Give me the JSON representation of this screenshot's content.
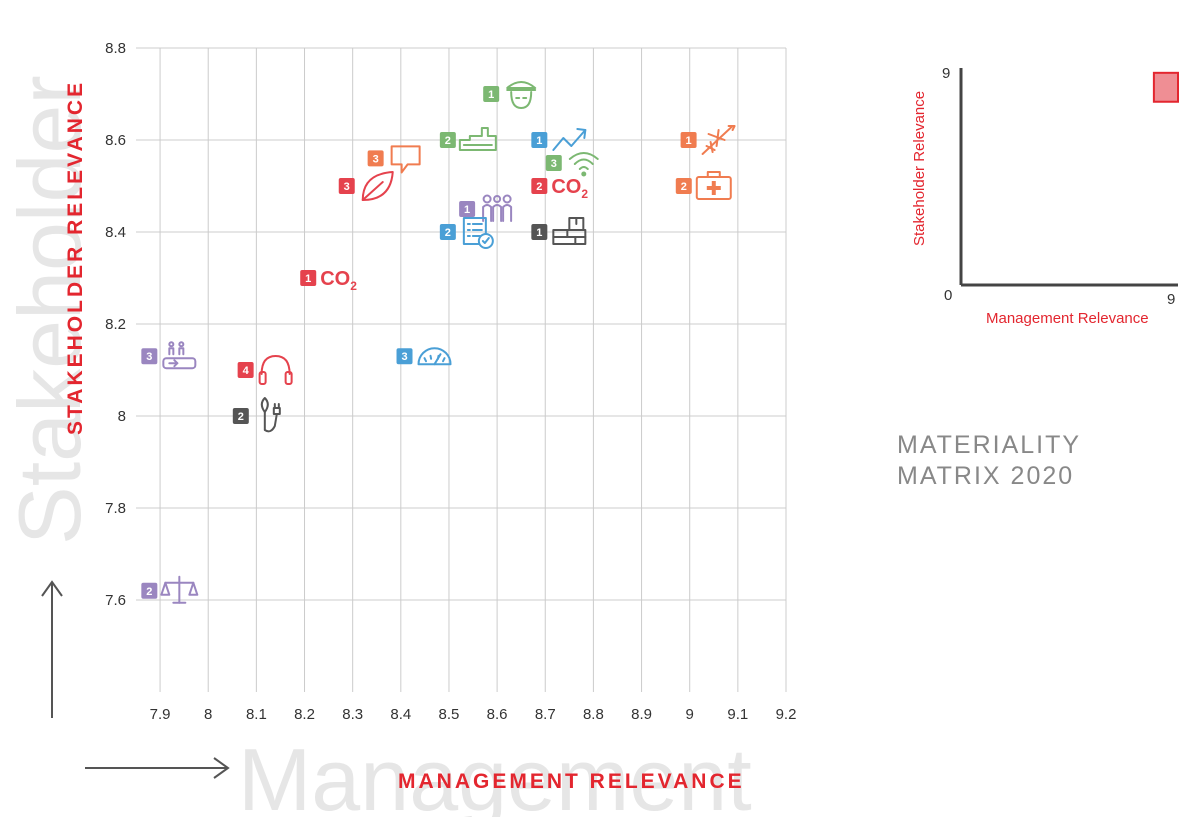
{
  "chart_data": {
    "type": "scatter",
    "title": "MATERIALITY MATRIX 2020",
    "xlabel": "MANAGEMENT RELEVANCE",
    "ylabel": "STAKEHOLDER RELEVANCE",
    "background_xlabel": "Management",
    "background_ylabel": "Stakeholder",
    "xlim": [
      7.85,
      9.2
    ],
    "ylim": [
      7.4,
      8.8
    ],
    "x_ticks": [
      "7.9",
      "8",
      "8.1",
      "8.2",
      "8.3",
      "8.4",
      "8.5",
      "8.6",
      "8.7",
      "8.8",
      "8.9",
      "9",
      "9.1",
      "9.2"
    ],
    "y_ticks": [
      "8.8",
      "8.6",
      "8.4",
      "8.2",
      "8",
      "7.8",
      "7.6"
    ],
    "points": [
      {
        "x": 8.65,
        "y": 8.7,
        "badge": "1",
        "icon": "pilot",
        "color": "#7cb872"
      },
      {
        "x": 8.56,
        "y": 8.6,
        "badge": "2",
        "icon": "factory",
        "color": "#7cb872"
      },
      {
        "x": 8.75,
        "y": 8.6,
        "badge": "1",
        "icon": "growth",
        "color": "#4a9fd6"
      },
      {
        "x": 8.78,
        "y": 8.55,
        "badge": "3",
        "icon": "wifi",
        "color": "#7cb872"
      },
      {
        "x": 9.06,
        "y": 8.6,
        "badge": "1",
        "icon": "airplane",
        "color": "#f07c50"
      },
      {
        "x": 8.41,
        "y": 8.56,
        "badge": "3",
        "icon": "chat",
        "color": "#f07c50"
      },
      {
        "x": 8.35,
        "y": 8.5,
        "badge": "3",
        "icon": "leaf",
        "color": "#e5424d"
      },
      {
        "x": 8.75,
        "y": 8.5,
        "badge": "2",
        "icon": "co2",
        "color": "#e5424d",
        "label": "CO",
        "label_sub": "2"
      },
      {
        "x": 9.05,
        "y": 8.5,
        "badge": "2",
        "icon": "medkit",
        "color": "#f07c50"
      },
      {
        "x": 8.6,
        "y": 8.45,
        "badge": "1",
        "icon": "people",
        "color": "#9a86c0"
      },
      {
        "x": 8.56,
        "y": 8.4,
        "badge": "2",
        "icon": "checklist",
        "color": "#4a9fd6"
      },
      {
        "x": 8.75,
        "y": 8.4,
        "badge": "1",
        "icon": "bricks",
        "color": "#555555"
      },
      {
        "x": 8.27,
        "y": 8.3,
        "badge": "1",
        "icon": "co2",
        "color": "#e5424d",
        "label": "CO",
        "label_sub": "2"
      },
      {
        "x": 7.94,
        "y": 8.13,
        "badge": "3",
        "icon": "elevator",
        "color": "#9a86c0"
      },
      {
        "x": 8.47,
        "y": 8.13,
        "badge": "3",
        "icon": "speedometer",
        "color": "#4a9fd6"
      },
      {
        "x": 8.14,
        "y": 8.1,
        "badge": "4",
        "icon": "headphones",
        "color": "#e5424d"
      },
      {
        "x": 8.13,
        "y": 8.0,
        "badge": "2",
        "icon": "plant-plug",
        "color": "#555555"
      },
      {
        "x": 7.94,
        "y": 7.62,
        "badge": "2",
        "icon": "scales",
        "color": "#9a86c0"
      }
    ],
    "legend": {
      "xlabel": "Management Relevance",
      "ylabel": "Stakeholder Relevance",
      "x_min": "0",
      "x_max": "9",
      "y_min": "0",
      "y_max": "9",
      "highlight_x": [
        8,
        9
      ],
      "highlight_y": [
        7.6,
        8.8
      ],
      "highlight_color": "#e5424d"
    }
  },
  "colors": {
    "accent": "#e3262f",
    "grid": "#cccccc",
    "axis": "#555555",
    "background_text": "#e6e6e6",
    "title_text": "#888888"
  }
}
